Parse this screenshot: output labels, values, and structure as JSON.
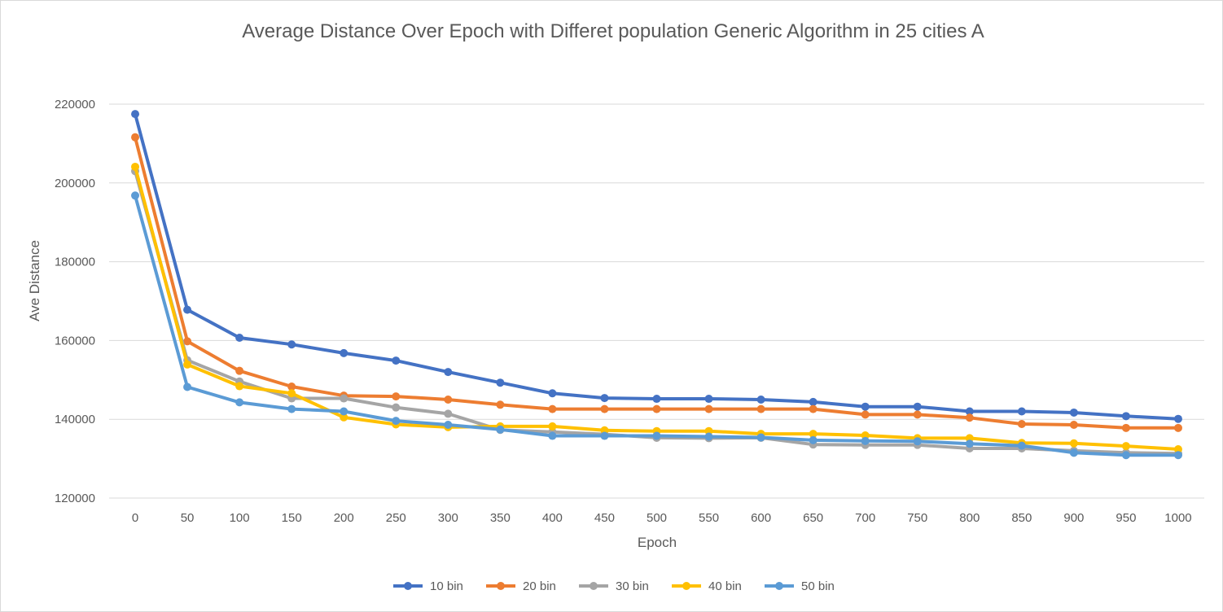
{
  "chart_data": {
    "type": "line",
    "title": "Average Distance Over Epoch with Differet population Generic Algorithm in 25 cities A",
    "xlabel": "Epoch",
    "ylabel": "Ave Distance",
    "categories": [
      "0",
      "50",
      "100",
      "150",
      "200",
      "250",
      "300",
      "350",
      "400",
      "450",
      "500",
      "550",
      "600",
      "650",
      "700",
      "750",
      "800",
      "850",
      "900",
      "950",
      "1000"
    ],
    "ylim": [
      120000,
      220000
    ],
    "yticks": [
      120000,
      140000,
      160000,
      180000,
      200000,
      220000
    ],
    "ytick_labels": [
      "120000",
      "140000",
      "160000",
      "180000",
      "200000",
      "220000"
    ],
    "grid": true,
    "legend_position": "bottom",
    "series": [
      {
        "name": "10 bin",
        "color": "#4472c4",
        "values": [
          217500,
          167800,
          160700,
          159000,
          156800,
          154900,
          152000,
          149300,
          146600,
          145400,
          145200,
          145200,
          145000,
          144400,
          143200,
          143200,
          142000,
          142000,
          141700,
          140800,
          140100
        ]
      },
      {
        "name": "20 bin",
        "color": "#ed7d31",
        "values": [
          211600,
          159800,
          152300,
          148300,
          146000,
          145800,
          145000,
          143700,
          142600,
          142600,
          142600,
          142600,
          142600,
          142600,
          141200,
          141200,
          140400,
          138800,
          138600,
          137800,
          137800
        ]
      },
      {
        "name": "30 bin",
        "color": "#a5a5a5",
        "values": [
          203000,
          155000,
          149600,
          145300,
          145300,
          143000,
          141400,
          137300,
          136800,
          136200,
          135300,
          135200,
          135300,
          133600,
          133500,
          133500,
          132600,
          132600,
          132000,
          131500,
          131300
        ]
      },
      {
        "name": "40 bin",
        "color": "#ffc000",
        "values": [
          204100,
          153900,
          148400,
          146600,
          140500,
          138700,
          138000,
          138200,
          138200,
          137200,
          137000,
          137000,
          136300,
          136300,
          135900,
          135200,
          135200,
          134000,
          133900,
          133200,
          132400
        ]
      },
      {
        "name": "50 bin",
        "color": "#5b9bd5",
        "values": [
          196800,
          148200,
          144300,
          142600,
          142000,
          139600,
          138600,
          137400,
          135800,
          135800,
          135800,
          135600,
          135400,
          134700,
          134500,
          134400,
          133800,
          133300,
          131500,
          130900,
          130900
        ]
      }
    ]
  }
}
